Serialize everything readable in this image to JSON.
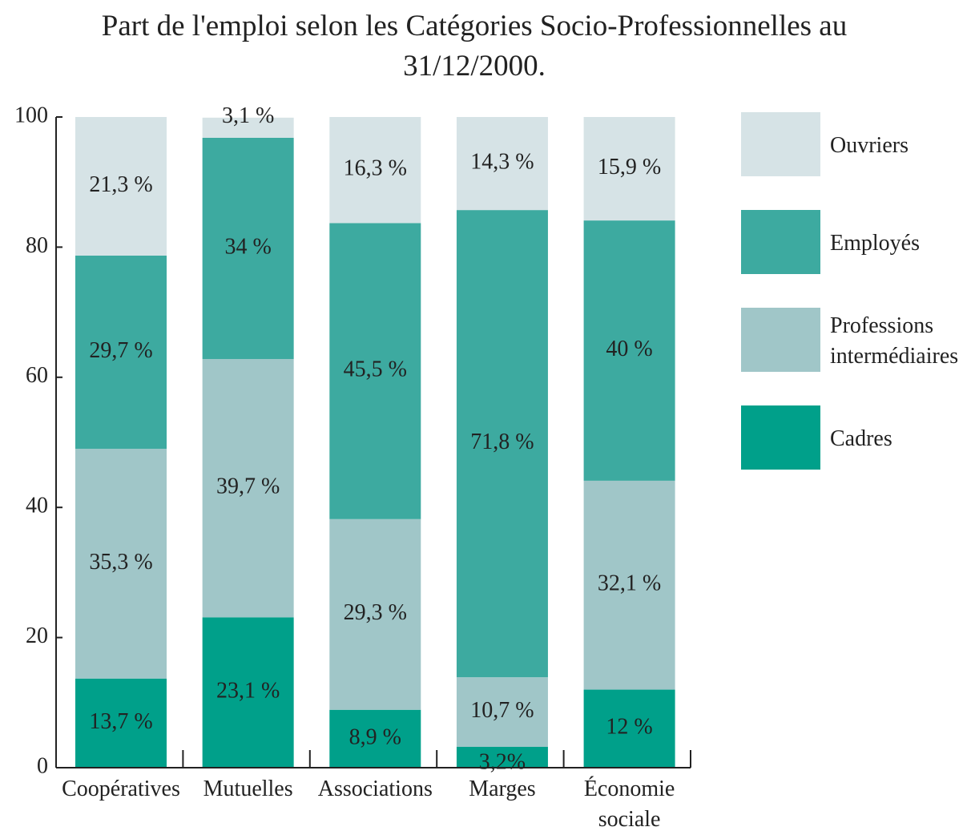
{
  "chart_data": {
    "type": "stacked_bar",
    "title": "Part de l'emploi selon les Catégories Socio-Professionnelles au 31/12/2000.",
    "categories": [
      "Coopératives",
      "Mutuelles",
      "Associations",
      "Marges",
      "Économie sociale"
    ],
    "series": [
      {
        "name": "Cadres",
        "color": "#00a08a",
        "values": [
          13.7,
          23.1,
          8.9,
          3.2,
          12
        ],
        "value_labels": [
          "13,7 %",
          "23,1 %",
          "8,9 %",
          "3,2%",
          "12 %"
        ]
      },
      {
        "name": "Professions intermédiaires",
        "color": "#a0c6c8",
        "values": [
          35.3,
          39.7,
          29.3,
          10.7,
          32.1
        ],
        "value_labels": [
          "35,3 %",
          "39,7 %",
          "29,3 %",
          "10,7 %",
          "32,1 %"
        ]
      },
      {
        "name": "Employés",
        "color": "#3daaa0",
        "values": [
          29.7,
          34,
          45.5,
          71.8,
          40
        ],
        "value_labels": [
          "29,7 %",
          "34 %",
          "45,5 %",
          "71,8 %",
          "40 %"
        ]
      },
      {
        "name": "Ouvriers",
        "color": "#d6e3e6",
        "values": [
          21.3,
          3.1,
          16.3,
          14.3,
          15.9
        ],
        "value_labels": [
          "21,3 %",
          "3,1 %",
          "16,3 %",
          "14,3 %",
          "15,9 %"
        ]
      }
    ],
    "ylim": [
      0,
      100
    ],
    "yticks": [
      0,
      20,
      40,
      60,
      80,
      100
    ],
    "legend": "right"
  }
}
